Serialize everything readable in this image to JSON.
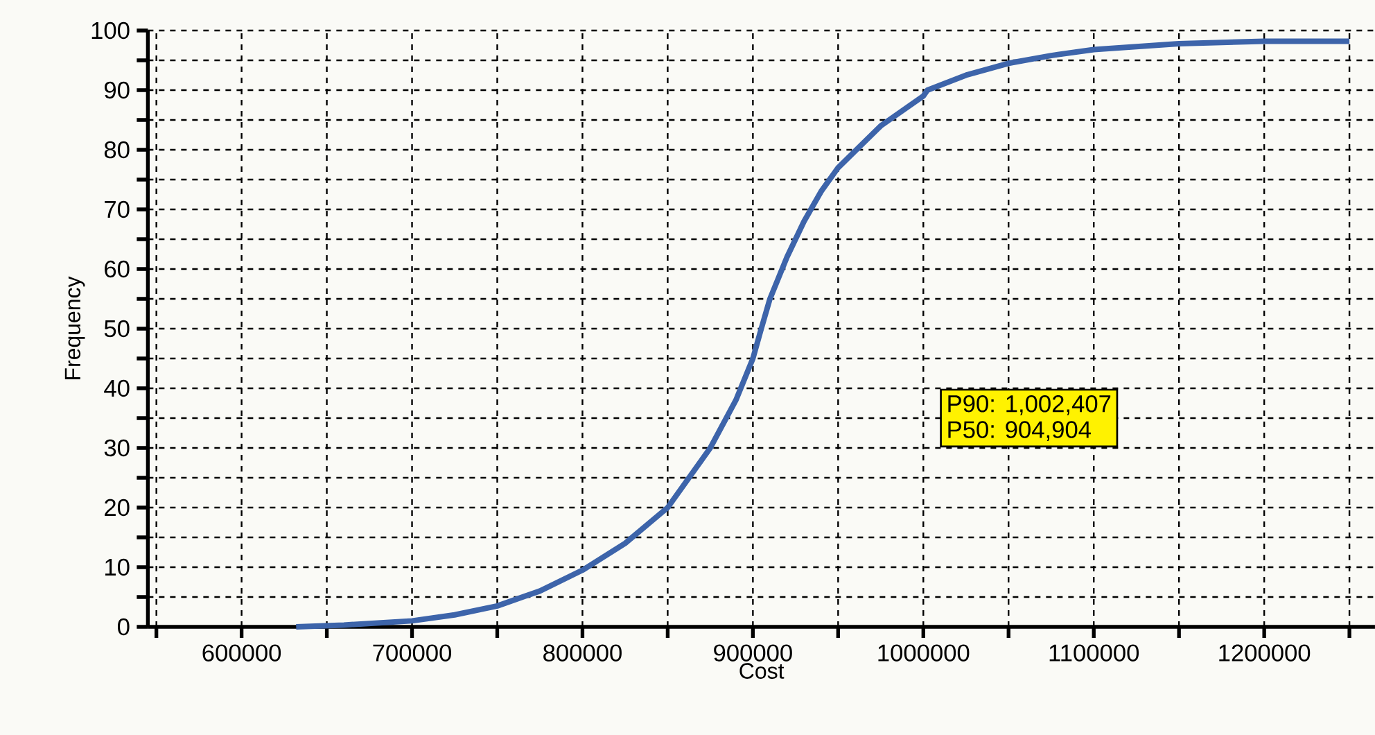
{
  "chart_data": {
    "type": "line",
    "xlabel": "Cost",
    "ylabel": "Frequency",
    "x": [
      632000,
      660000,
      700000,
      725000,
      750000,
      775000,
      800000,
      825000,
      850000,
      875000,
      890000,
      900000,
      904904,
      910000,
      920000,
      930000,
      940000,
      950000,
      975000,
      1000000,
      1002407,
      1025000,
      1050000,
      1075000,
      1100000,
      1150000,
      1200000,
      1250000
    ],
    "series": [
      {
        "color": "#3d64aa",
        "values": [
          0,
          0.3,
          1,
          2,
          3.5,
          6,
          9.5,
          14,
          20,
          30,
          38,
          45,
          50,
          55,
          62,
          68,
          73,
          77,
          84,
          89,
          90,
          92.5,
          94.5,
          95.8,
          96.8,
          97.8,
          98.2,
          98.2
        ]
      }
    ],
    "xlim": [
      545000,
      1265000
    ],
    "ylim": [
      0,
      100
    ],
    "xticks": [
      {
        "value": 550000,
        "label": null
      },
      600000,
      {
        "value": 650000,
        "label": null
      },
      700000,
      {
        "value": 750000,
        "label": null
      },
      800000,
      {
        "value": 850000,
        "label": null
      },
      900000,
      {
        "value": 950000,
        "label": null
      },
      1000000,
      {
        "value": 1050000,
        "label": null
      },
      1100000,
      {
        "value": 1150000,
        "label": null
      },
      1200000,
      {
        "value": 1250000,
        "label": null
      }
    ],
    "yticks": [
      0,
      {
        "value": 5,
        "label": null
      },
      10,
      {
        "value": 15,
        "label": null
      },
      20,
      {
        "value": 25,
        "label": null
      },
      30,
      {
        "value": 35,
        "label": null
      },
      40,
      {
        "value": 45,
        "label": null
      },
      50,
      {
        "value": 55,
        "label": null
      },
      60,
      {
        "value": 65,
        "label": null
      },
      70,
      {
        "value": 75,
        "label": null
      },
      80,
      {
        "value": 85,
        "label": null
      },
      90,
      {
        "value": 95,
        "label": null
      },
      100
    ],
    "grid": true,
    "marker": "none",
    "line_style": "solid",
    "annotations": [
      "P90: 1,002,407",
      "P50: 904,904"
    ]
  }
}
